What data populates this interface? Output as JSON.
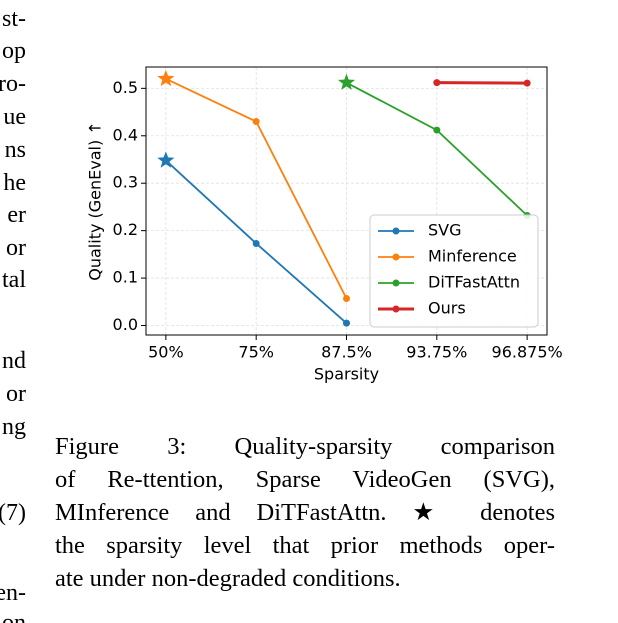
{
  "left_fragments": [
    "st-",
    "op",
    "ro-",
    "ue",
    "ns",
    "he",
    "er",
    "or",
    "tal",
    "nd",
    "or",
    "ng",
    "(7)",
    "en-",
    "on"
  ],
  "chart_data": {
    "type": "line",
    "categories": [
      "50%",
      "75%",
      "87.5%",
      "93.75%",
      "96.875%"
    ],
    "x_label": "Sparsity",
    "y_label": "Quality (GenEval) ↑",
    "ylim": [
      -0.02,
      0.545
    ],
    "yticks": [
      {
        "value": 0,
        "label": "0.0"
      },
      0.1,
      0.2,
      0.3,
      0.4,
      0.5
    ],
    "grid": true,
    "legend": "lower right",
    "series": [
      {
        "name": "SVG",
        "color": "#1f77b4",
        "values": [
          0.348,
          0.173,
          0.005,
          null,
          null
        ],
        "star_at": 0
      },
      {
        "name": "Minference",
        "color": "#ff7f0e",
        "values": [
          0.52,
          0.43,
          0.057,
          null,
          null
        ],
        "star_at": 0
      },
      {
        "name": "DiTFastAttn",
        "color": "#2ca02c",
        "values": [
          null,
          null,
          0.512,
          0.412,
          0.232
        ],
        "star_at": 2
      },
      {
        "name": "Ours",
        "color": "#d62728",
        "values": [
          null,
          null,
          null,
          0.512,
          0.511
        ]
      }
    ]
  },
  "caption": [
    "Figure 3:  Quality-sparsity comparison",
    "of Re-ttention, Sparse VideoGen (SVG),",
    "MInference and DiTFastAttn. ★ denotes",
    "the sparsity level that prior methods oper-",
    "ate under non-degraded conditions."
  ]
}
